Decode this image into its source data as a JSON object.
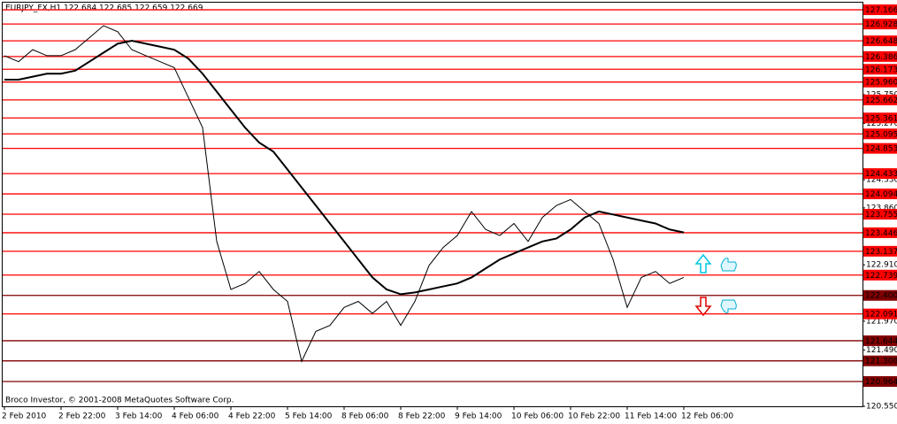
{
  "chart_data": {
    "type": "line",
    "title": "EURJPY_FX,H1  122.684 122.685 122.659 122.669",
    "footer": "Broco Investor, © 2001-2008 MetaQuotes Software Corp.",
    "categories": [
      "2 Feb 2010",
      null,
      null,
      null,
      "2 Feb 22:00",
      null,
      null,
      null,
      "3 Feb 14:00",
      null,
      null,
      null,
      "4 Feb 06:00",
      null,
      null,
      null,
      "4 Feb 22:00",
      null,
      null,
      null,
      "5 Feb 14:00",
      null,
      null,
      null,
      "8 Feb 06:00",
      null,
      null,
      null,
      "8 Feb 22:00",
      null,
      null,
      null,
      "9 Feb 14:00",
      null,
      null,
      null,
      "10 Feb 06:00",
      null,
      null,
      null,
      "10 Feb 22:00",
      null,
      null,
      null,
      "11 Feb 14:00",
      null,
      null,
      null,
      "12 Feb 06:00"
    ],
    "series": [
      {
        "color": "#000000",
        "values": [
          126.4,
          126.3,
          126.5,
          126.4,
          126.4,
          126.5,
          126.7,
          126.9,
          126.8,
          126.5,
          126.4,
          126.3,
          126.2,
          125.7,
          125.2,
          123.3,
          122.5,
          122.6,
          122.8,
          122.5,
          122.3,
          121.3,
          121.8,
          121.9,
          122.2,
          122.3,
          122.1,
          122.3,
          121.9,
          122.3,
          122.9,
          123.2,
          123.4,
          123.8,
          123.5,
          123.4,
          123.6,
          123.3,
          123.7,
          123.9,
          124.0,
          123.8,
          123.6,
          123.0,
          122.2,
          122.7,
          122.8,
          122.6,
          122.7
        ]
      },
      {
        "color": "#000000",
        "values": [
          126.0,
          126.0,
          126.05,
          126.1,
          126.1,
          126.15,
          126.3,
          126.45,
          126.6,
          126.65,
          126.6,
          126.55,
          126.5,
          126.35,
          126.1,
          125.8,
          125.5,
          125.2,
          124.95,
          124.8,
          124.5,
          124.2,
          123.9,
          123.6,
          123.3,
          123.0,
          122.7,
          122.5,
          122.42,
          122.45,
          122.5,
          122.55,
          122.6,
          122.7,
          122.85,
          123.0,
          123.1,
          123.2,
          123.3,
          123.35,
          123.5,
          123.7,
          123.8,
          123.75,
          123.7,
          123.65,
          123.6,
          123.5,
          123.45
        ]
      }
    ],
    "ylim": [
      120.55,
      127.27
    ],
    "yticks": [
      {
        "value": 125.75,
        "label": "125.750"
      },
      {
        "value": 125.27,
        "label": "125.270"
      },
      {
        "value": 124.33,
        "label": "124.330"
      },
      {
        "value": 123.86,
        "label": "123.860"
      },
      {
        "value": 122.91,
        "label": "122.910"
      },
      {
        "value": 121.97,
        "label": "121.970"
      },
      {
        "value": 121.49,
        "label": "121.490"
      },
      {
        "value": 120.55,
        "label": "120.550"
      }
    ],
    "levels": [
      {
        "value": 127.166,
        "color": "#ff0000"
      },
      {
        "value": 126.928,
        "color": "#ff0000"
      },
      {
        "value": 126.648,
        "color": "#ff0000"
      },
      {
        "value": 126.386,
        "color": "#ff0000"
      },
      {
        "value": 126.173,
        "color": "#ff0000"
      },
      {
        "value": 125.96,
        "label": "125.960",
        "color": "#ff0000"
      },
      {
        "value": 125.662,
        "color": "#ff0000"
      },
      {
        "value": 125.361,
        "color": "#ff0000"
      },
      {
        "value": 125.095,
        "color": "#ff0000"
      },
      {
        "value": 124.853,
        "color": "#ff0000"
      },
      {
        "value": 124.433,
        "color": "#ff0000"
      },
      {
        "value": 124.094,
        "color": "#ff0000"
      },
      {
        "value": 123.755,
        "color": "#ff0000"
      },
      {
        "value": 123.446,
        "color": "#ff0000"
      },
      {
        "value": 123.137,
        "color": "#ff0000"
      },
      {
        "value": 122.739,
        "color": "#ff0000"
      },
      {
        "value": 122.4,
        "label": "122.400",
        "color": "#800000"
      },
      {
        "value": 122.091,
        "color": "#ff0000"
      },
      {
        "value": 121.644,
        "color": "#800000"
      },
      {
        "value": 121.308,
        "color": "#800000"
      },
      {
        "value": 120.964,
        "color": "#800000"
      }
    ]
  }
}
